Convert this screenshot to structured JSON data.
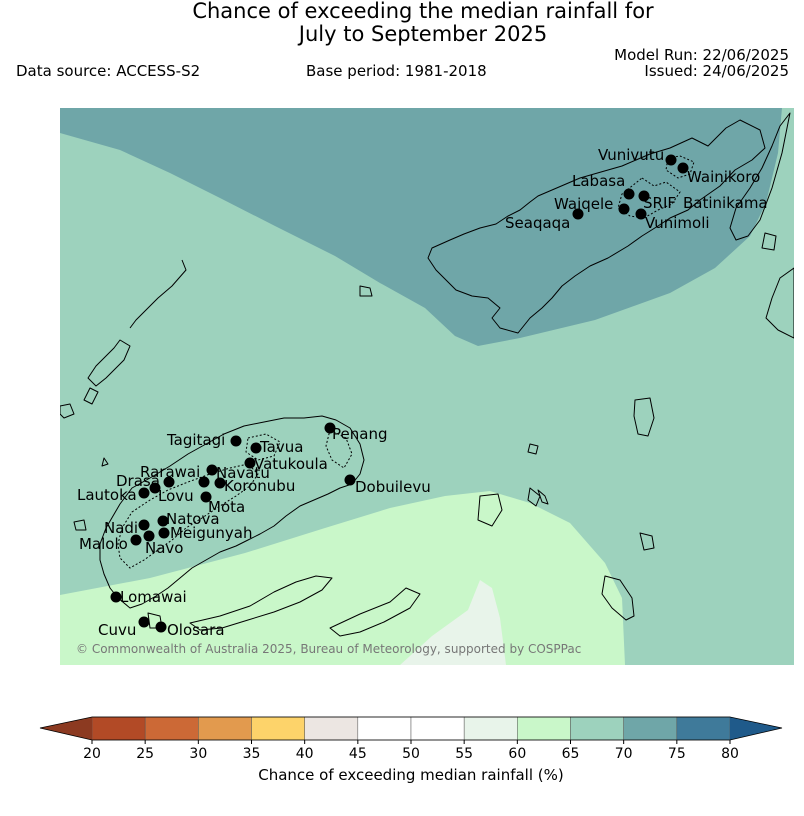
{
  "header": {
    "title_line1": "Chance of exceeding the median rainfall for",
    "title_line2": "July to September 2025",
    "model_run": "Model Run: 22/06/2025",
    "issued": "Issued: 24/06/2025",
    "data_source": "Data source: ACCESS-S2",
    "base_period": "Base period: 1981-2018"
  },
  "map": {
    "copyright": "© Commonwealth of Australia 2025, Bureau of Meteorology, supported by COSPPac",
    "zone_colors": {
      "p55_60": "#e8f4ea",
      "p60_65": "#c9f7c9",
      "p65_70": "#9dd2bd",
      "p70_75": "#6fa6a8"
    },
    "stations": [
      {
        "name": "Vunivutu"
      },
      {
        "name": "Wainikoro"
      },
      {
        "name": "Labasa"
      },
      {
        "name": "SRIF"
      },
      {
        "name": "Batinikama"
      },
      {
        "name": "Waiqele"
      },
      {
        "name": "Seaqaqa"
      },
      {
        "name": "Vunimoli"
      },
      {
        "name": "Penang"
      },
      {
        "name": "Tagitagi"
      },
      {
        "name": "Tavua"
      },
      {
        "name": "Vatukoula"
      },
      {
        "name": "Rarawai"
      },
      {
        "name": "Navatu"
      },
      {
        "name": "Drasa"
      },
      {
        "name": "Koronubu"
      },
      {
        "name": "Lautoka"
      },
      {
        "name": "Lovu"
      },
      {
        "name": "Mota"
      },
      {
        "name": "Dobuilevu"
      },
      {
        "name": "Natova"
      },
      {
        "name": "Nadi"
      },
      {
        "name": "Meigunyah"
      },
      {
        "name": "Malolo"
      },
      {
        "name": "Navo"
      },
      {
        "name": "Lomawai"
      },
      {
        "name": "Cuvu"
      },
      {
        "name": "Olosara"
      }
    ]
  },
  "legend": {
    "title": "Chance of exceeding median rainfall (%)",
    "ticks": [
      "20",
      "25",
      "30",
      "35",
      "40",
      "45",
      "50",
      "55",
      "60",
      "65",
      "70",
      "75",
      "80"
    ],
    "low_extend_color": "#8c3a21",
    "high_extend_color": "#1f5a8a",
    "bins": [
      {
        "from": 20,
        "to": 25,
        "color": "#b24a26"
      },
      {
        "from": 25,
        "to": 30,
        "color": "#cc6936"
      },
      {
        "from": 30,
        "to": 35,
        "color": "#e29a4e"
      },
      {
        "from": 35,
        "to": 40,
        "color": "#fdd36a"
      },
      {
        "from": 40,
        "to": 45,
        "color": "#ece6e2"
      },
      {
        "from": 45,
        "to": 50,
        "color": "#ffffff"
      },
      {
        "from": 50,
        "to": 55,
        "color": "#ffffff"
      },
      {
        "from": 55,
        "to": 60,
        "color": "#e8f4ea"
      },
      {
        "from": 60,
        "to": 65,
        "color": "#c9f7c9"
      },
      {
        "from": 65,
        "to": 70,
        "color": "#9dd2bd"
      },
      {
        "from": 70,
        "to": 75,
        "color": "#6fa6a8"
      },
      {
        "from": 75,
        "to": 80,
        "color": "#3f7a9a"
      }
    ]
  }
}
